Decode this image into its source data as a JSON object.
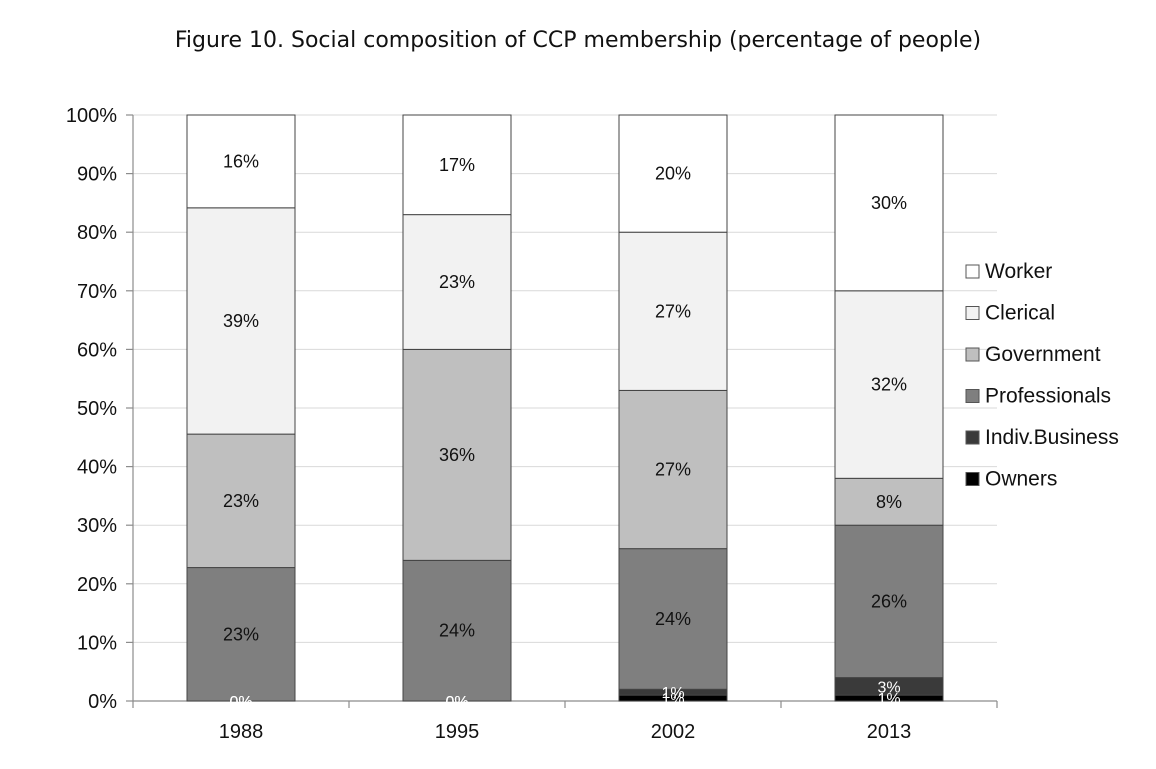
{
  "chart_data": {
    "type": "bar",
    "stacked": true,
    "title": "Figure 10.  Social composition of CCP membership (percentage of people)",
    "xlabel": "",
    "ylabel": "",
    "categories": [
      "1988",
      "1995",
      "2002",
      "2013"
    ],
    "ylim": [
      0,
      100
    ],
    "yticks": [
      "0%",
      "10%",
      "20%",
      "30%",
      "40%",
      "50%",
      "60%",
      "70%",
      "80%",
      "90%",
      "100%"
    ],
    "grid": true,
    "legend_position": "right",
    "series": [
      {
        "name": "Owners",
        "color": "#000000",
        "values": [
          0,
          0,
          1,
          1
        ],
        "labels": [
          "0%",
          "0%",
          "1%",
          "1%"
        ]
      },
      {
        "name": "Indiv.Business",
        "color": "#3a3a3a",
        "values": [
          0,
          0,
          1,
          3
        ],
        "labels": [
          "0%",
          "0%",
          "1%",
          "3%"
        ]
      },
      {
        "name": "Professionals",
        "color": "#7f7f7f",
        "values": [
          23,
          24,
          24,
          26
        ],
        "labels": [
          "23%",
          "24%",
          "24%",
          "26%"
        ]
      },
      {
        "name": "Government",
        "color": "#bfbfbf",
        "values": [
          23,
          36,
          27,
          8
        ],
        "labels": [
          "23%",
          "36%",
          "27%",
          "8%"
        ]
      },
      {
        "name": "Clerical",
        "color": "#f2f2f2",
        "values": [
          39,
          23,
          27,
          32
        ],
        "labels": [
          "39%",
          "23%",
          "27%",
          "32%"
        ]
      },
      {
        "name": "Worker",
        "color": "#ffffff",
        "values": [
          16,
          17,
          20,
          30
        ],
        "labels": [
          "16%",
          "17%",
          "20%",
          "30%"
        ]
      }
    ],
    "legend_order": [
      "Worker",
      "Clerical",
      "Government",
      "Professionals",
      "Indiv.Business",
      "Owners"
    ]
  }
}
